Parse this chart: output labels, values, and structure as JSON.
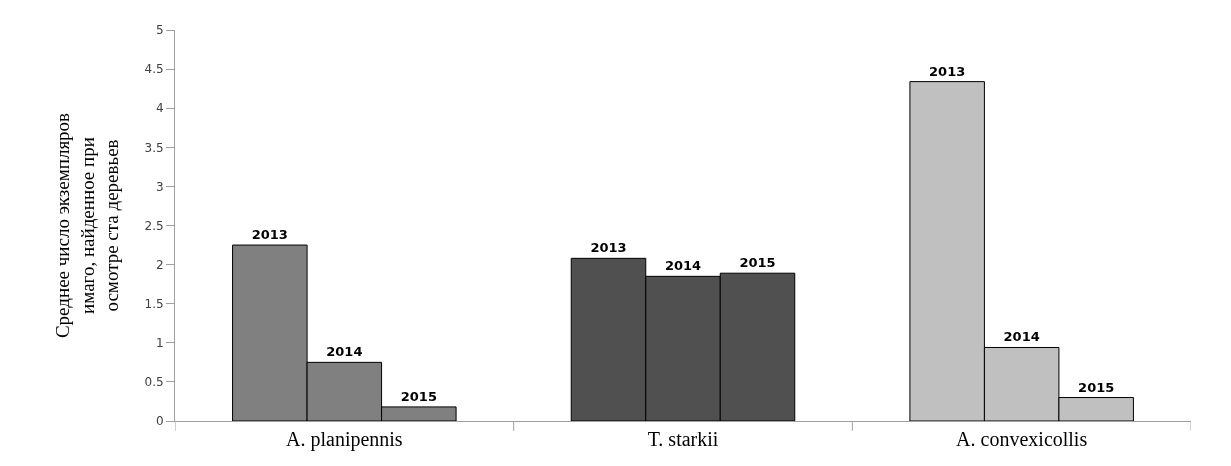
{
  "chart_data": {
    "type": "bar",
    "ylabel": "Среднее число экземпляров\nимаго, найденное при\nосмотре ста деревьев",
    "categories": [
      "A. planipennis",
      "T. starkii",
      "A. convexicollis"
    ],
    "series": [
      {
        "name": "2013",
        "colors": [
          "#808080",
          "#505050",
          "#c0c0c0"
        ],
        "values": [
          2.25,
          2.08,
          4.34
        ]
      },
      {
        "name": "2014",
        "colors": [
          "#808080",
          "#505050",
          "#c0c0c0"
        ],
        "values": [
          0.75,
          1.85,
          0.94
        ]
      },
      {
        "name": "2015",
        "colors": [
          "#808080",
          "#505050",
          "#c0c0c0"
        ],
        "values": [
          0.18,
          1.89,
          0.3
        ]
      }
    ],
    "ylim": [
      0,
      5
    ],
    "yticks": [
      0,
      0.5,
      1,
      1.5,
      2,
      2.5,
      3,
      3.5,
      4,
      4.5,
      5
    ],
    "legend": false
  }
}
